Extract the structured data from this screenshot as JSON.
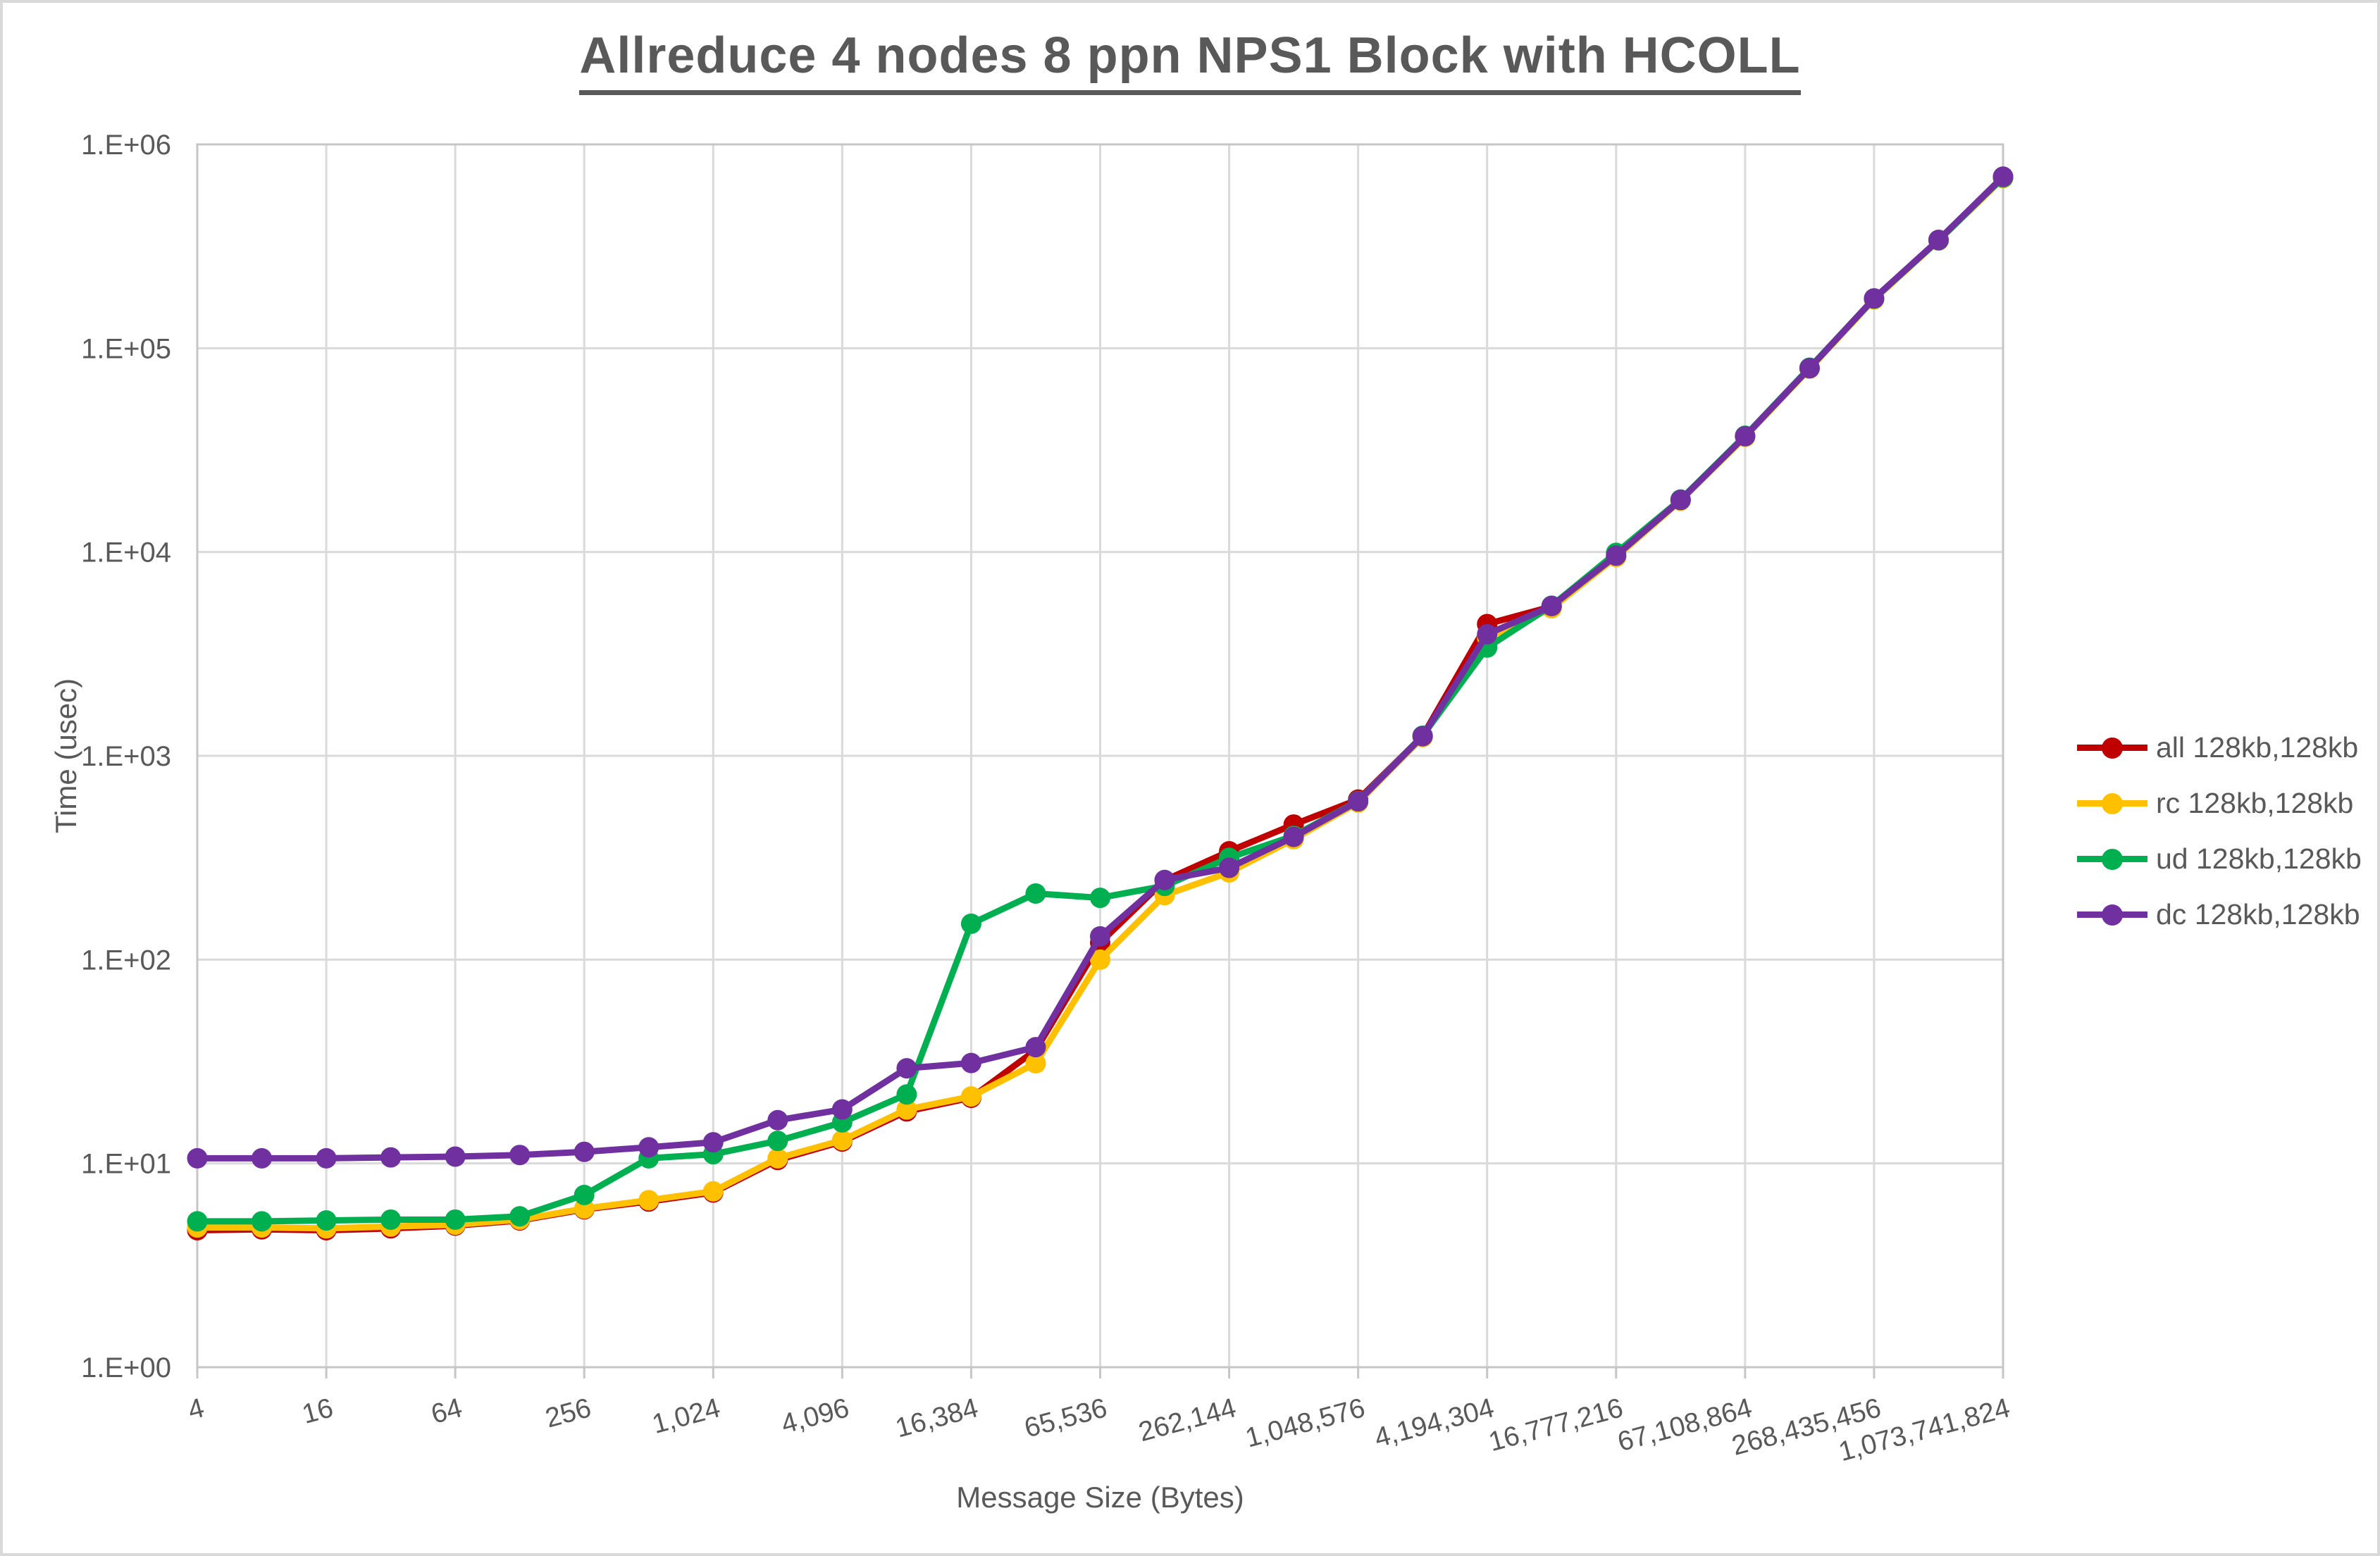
{
  "title": "Allreduce 4 nodes 8 ppn NPS1 Block with HCOLL",
  "x_axis_title": "Message Size (Bytes)",
  "y_axis_title": "Time (usec)",
  "text_color": "#595959",
  "gridline_color": "#dadada",
  "axis_frame_color": "#c6c6c6",
  "chart_data": {
    "type": "line",
    "x_scale": "log2",
    "y_scale": "log10",
    "xlim": [
      4,
      1073741824
    ],
    "ylim": [
      1,
      1000000
    ],
    "grid": true,
    "legend_position": "right",
    "x": [
      4,
      8,
      16,
      32,
      64,
      128,
      256,
      512,
      1024,
      2048,
      4096,
      8192,
      16384,
      32768,
      65536,
      131072,
      262144,
      524288,
      1048576,
      2097152,
      4194304,
      8388608,
      16777216,
      33554432,
      67108864,
      134217728,
      268435456,
      536870912,
      1073741824
    ],
    "x_tick_values": [
      4,
      16,
      64,
      256,
      1024,
      4096,
      16384,
      65536,
      262144,
      1048576,
      4194304,
      16777216,
      67108864,
      268435456,
      1073741824
    ],
    "x_tick_labels": [
      "4",
      "16",
      "64",
      "256",
      "1,024",
      "4,096",
      "16,384",
      "65,536",
      "262,144",
      "1,048,576",
      "4,194,304",
      "16,777,216",
      "67,108,864",
      "268,435,456",
      "1,073,741,824"
    ],
    "y_tick_labels": [
      "1.E+00",
      "1.E+01",
      "1.E+02",
      "1.E+03",
      "1.E+04",
      "1.E+05",
      "1.E+06"
    ],
    "series": [
      {
        "name": "all 128kb,128kb",
        "color": "#C00000",
        "values": [
          4.7,
          4.75,
          4.7,
          4.8,
          4.95,
          5.25,
          5.95,
          6.5,
          7.2,
          10.4,
          12.8,
          18.0,
          21.0,
          36,
          121,
          245,
          340,
          460,
          610,
          1250,
          4430,
          5400,
          9500,
          17950,
          36900,
          79700,
          174500,
          339000,
          690000
        ]
      },
      {
        "name": "rc 128kb,128kb",
        "color": "#FFC000",
        "values": [
          4.85,
          4.85,
          4.8,
          4.9,
          5.0,
          5.3,
          6.0,
          6.6,
          7.3,
          10.6,
          13.0,
          18.4,
          21.3,
          31,
          100,
          207,
          268,
          390,
          590,
          1235,
          3800,
          5300,
          9450,
          17850,
          36700,
          79300,
          173500,
          337000,
          683000
        ]
      },
      {
        "name": "ud 128kb,128kb",
        "color": "#00B050",
        "values": [
          5.2,
          5.2,
          5.25,
          5.3,
          5.3,
          5.5,
          7.0,
          10.6,
          11.1,
          12.9,
          15.9,
          21.8,
          150,
          211,
          201,
          230,
          316,
          405,
          600,
          1255,
          3400,
          5450,
          9900,
          18100,
          37200,
          80200,
          175000,
          338500,
          688000
        ]
      },
      {
        "name": "dc 128kb,128kb",
        "color": "#7030A0",
        "values": [
          10.6,
          10.6,
          10.6,
          10.7,
          10.8,
          11.0,
          11.4,
          12.0,
          12.7,
          16.3,
          18.4,
          29.3,
          31.1,
          37.2,
          130,
          246,
          282,
          400,
          598,
          1248,
          3950,
          5430,
          9600,
          18000,
          37000,
          79800,
          175500,
          340000,
          695000
        ]
      }
    ]
  }
}
